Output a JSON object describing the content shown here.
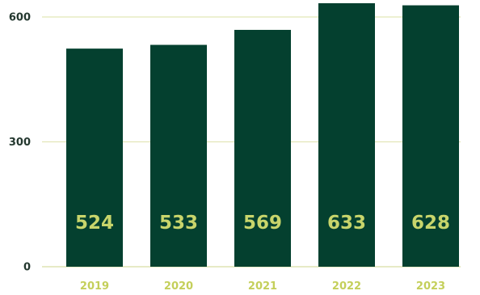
{
  "chart_data": {
    "type": "bar",
    "categories": [
      "2019",
      "2020",
      "2021",
      "2022",
      "2023"
    ],
    "values": [
      524,
      533,
      569,
      633,
      628
    ],
    "data_labels": [
      "524",
      "533",
      "569",
      "633",
      "628"
    ],
    "title": "",
    "xlabel": "",
    "ylabel": "",
    "ylim": [
      0,
      633
    ],
    "yticks": [
      0,
      300,
      600
    ],
    "ytick_labels": [
      "0",
      "300",
      "600"
    ],
    "grid": true,
    "legend": "none"
  },
  "colors": {
    "bar": "#04402f",
    "data_label": "#c8d56b",
    "x_tick": "#c4cf5a",
    "y_tick": "#24382f",
    "grid": "#e2e6b8"
  }
}
